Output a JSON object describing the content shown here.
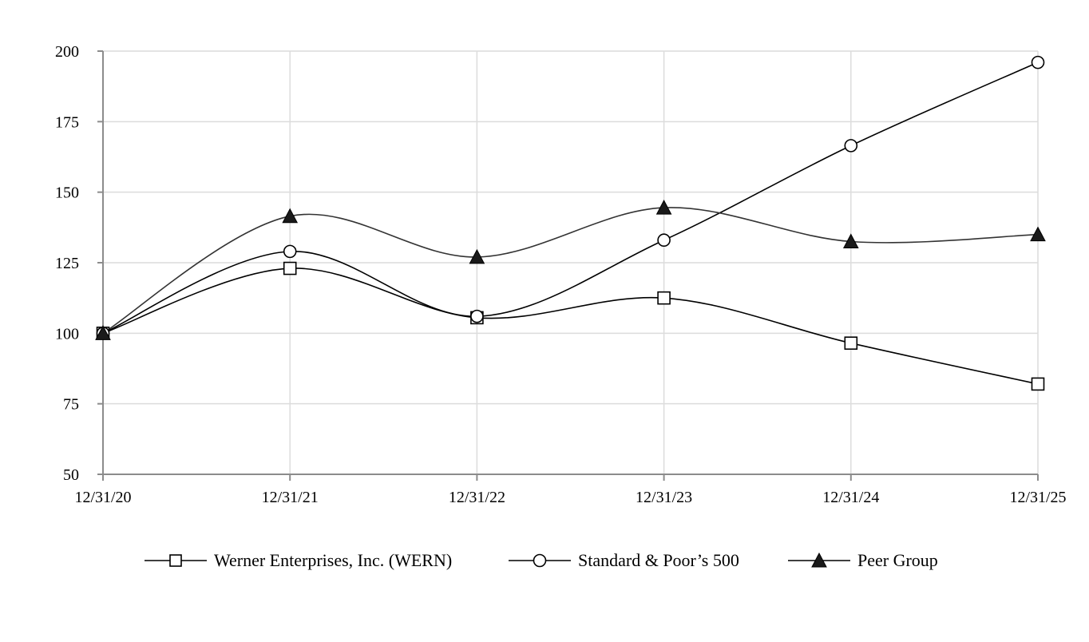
{
  "chart_data": {
    "type": "line",
    "title": "",
    "xlabel": "",
    "ylabel": "",
    "categories": [
      "12/31/20",
      "12/31/21",
      "12/31/22",
      "12/31/23",
      "12/31/24",
      "12/31/25"
    ],
    "ylim": [
      50,
      200
    ],
    "yticks": [
      50,
      75,
      100,
      125,
      150,
      175,
      200
    ],
    "grid": true,
    "legend_position": "bottom",
    "series": [
      {
        "name": "Werner Enterprises, Inc. (WERN)",
        "marker": "square",
        "color": "#000000",
        "values": [
          100,
          123,
          105.5,
          112.5,
          96.5,
          82
        ]
      },
      {
        "name": "Standard & Poor’s 500",
        "marker": "circle",
        "color": "#000000",
        "values": [
          100,
          129,
          106,
          133,
          166.5,
          196
        ]
      },
      {
        "name": "Peer Group",
        "marker": "triangle",
        "color": "#000000",
        "values": [
          100,
          141.5,
          127,
          144.5,
          132.5,
          135
        ]
      }
    ]
  }
}
